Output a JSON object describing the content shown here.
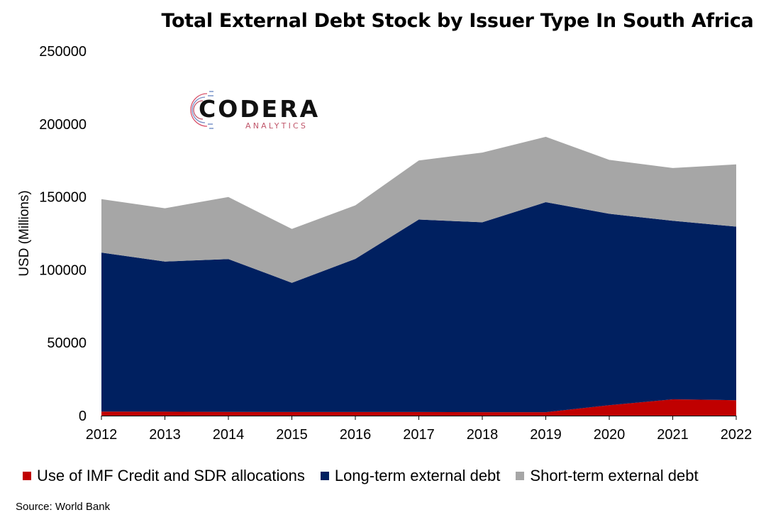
{
  "chart_data": {
    "type": "area",
    "stacked": true,
    "title": "Total External Debt Stock by Issuer Type In South Africa",
    "ylabel": "USD (Millions)",
    "xlabel": "",
    "x": [
      2012,
      2013,
      2014,
      2015,
      2016,
      2017,
      2018,
      2019,
      2020,
      2021,
      2022
    ],
    "ylim": [
      0,
      250000
    ],
    "yticks": [
      "0",
      "50000",
      "100000",
      "150000",
      "200000",
      "250000"
    ],
    "grid": false,
    "legend_position": "bottom",
    "series": [
      {
        "name": "Use of IMF Credit and SDR allocations",
        "color": "#c00000",
        "values": [
          2800,
          2700,
          2600,
          2500,
          2500,
          2500,
          2400,
          2400,
          7200,
          11200,
          10600
        ]
      },
      {
        "name": "Long-term external debt",
        "color": "#002060",
        "values": [
          109000,
          103000,
          104800,
          88600,
          105000,
          132000,
          130200,
          144000,
          131200,
          122400,
          119000
        ]
      },
      {
        "name": "Short-term external debt",
        "color": "#a6a6a6",
        "values": [
          36700,
          36500,
          42500,
          36900,
          36700,
          40500,
          47800,
          44800,
          37000,
          36200,
          42700
        ]
      }
    ]
  },
  "source": "Source: World Bank",
  "logo": {
    "name": "CODERA",
    "sub": "ANALYTICS"
  }
}
